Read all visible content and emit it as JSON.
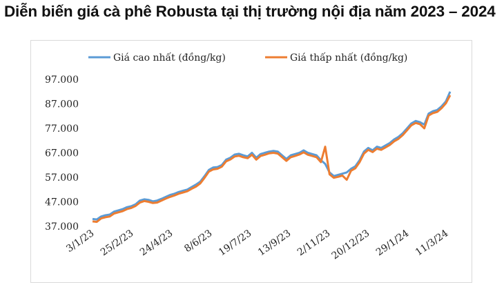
{
  "title": "Diễn biến giá cà phê Robusta tại thị trường nội địa năm 2023 – 2024",
  "colors": {
    "high": "#5b9bd5",
    "low": "#ed7d31",
    "text": "#222222"
  },
  "chart_data": {
    "type": "line",
    "title": "Diễn biến giá cà phê Robusta tại thị trường nội địa năm 2023 – 2024",
    "xlabel": "",
    "ylabel": "",
    "ylim": [
      37000,
      97000
    ],
    "yticks": [
      "97.000",
      "87.000",
      "77.000",
      "67.000",
      "57.000",
      "47.000",
      "37.000"
    ],
    "ytick_values": [
      97000,
      87000,
      77000,
      67000,
      57000,
      47000,
      37000
    ],
    "xticks": [
      "3/1/23",
      "25/2/23",
      "24/4/23",
      "8/6/23",
      "19/7/23",
      "13/9/23",
      "2/11/23",
      "20/12/23",
      "29/1/24",
      "11/3/24"
    ],
    "grid": false,
    "legend": "top",
    "series": [
      {
        "name": "Giá cao nhất (đồng/kg)",
        "color": "#5b9bd5",
        "values": [
          40000,
          39800,
          41000,
          41500,
          41800,
          43000,
          43500,
          44000,
          44800,
          45200,
          46000,
          47500,
          48000,
          47800,
          47200,
          47500,
          48200,
          49000,
          49800,
          50300,
          51000,
          51500,
          52000,
          53000,
          54000,
          55200,
          57500,
          60000,
          61000,
          61200,
          62000,
          64200,
          65000,
          66300,
          66600,
          66000,
          65500,
          67000,
          65000,
          66500,
          67000,
          67500,
          67800,
          67500,
          66000,
          64500,
          66000,
          66500,
          67000,
          68000,
          67000,
          66500,
          66000,
          64000,
          62500,
          59000,
          57500,
          58000,
          58500,
          59000,
          60500,
          61500,
          64000,
          67500,
          69000,
          68000,
          69500,
          69000,
          70000,
          71000,
          72500,
          73500,
          75000,
          77000,
          79000,
          80000,
          79500,
          78500,
          83000,
          84000,
          84500,
          86000,
          88000,
          92000
        ]
      },
      {
        "name": "Giá thấp nhất (đồng/kg)",
        "color": "#ed7d31",
        "values": [
          39000,
          38800,
          40200,
          40700,
          41000,
          42200,
          42700,
          43200,
          44000,
          44500,
          45300,
          46700,
          47300,
          47000,
          46500,
          46700,
          47500,
          48300,
          49000,
          49600,
          50300,
          50800,
          51300,
          52300,
          53200,
          54500,
          56800,
          59300,
          60200,
          60500,
          61300,
          63500,
          64300,
          65500,
          65800,
          65200,
          64800,
          66200,
          64200,
          65700,
          66200,
          66800,
          67000,
          66700,
          65200,
          63700,
          65200,
          65700,
          66300,
          67200,
          66200,
          65700,
          65200,
          63200,
          69500,
          58200,
          56800,
          57200,
          57700,
          56000,
          59700,
          60700,
          63200,
          66700,
          68200,
          67300,
          68700,
          68200,
          69200,
          70200,
          71700,
          72700,
          74200,
          76200,
          78200,
          79200,
          78700,
          77000,
          82200,
          83200,
          83700,
          85200,
          87200,
          90500
        ]
      }
    ]
  }
}
